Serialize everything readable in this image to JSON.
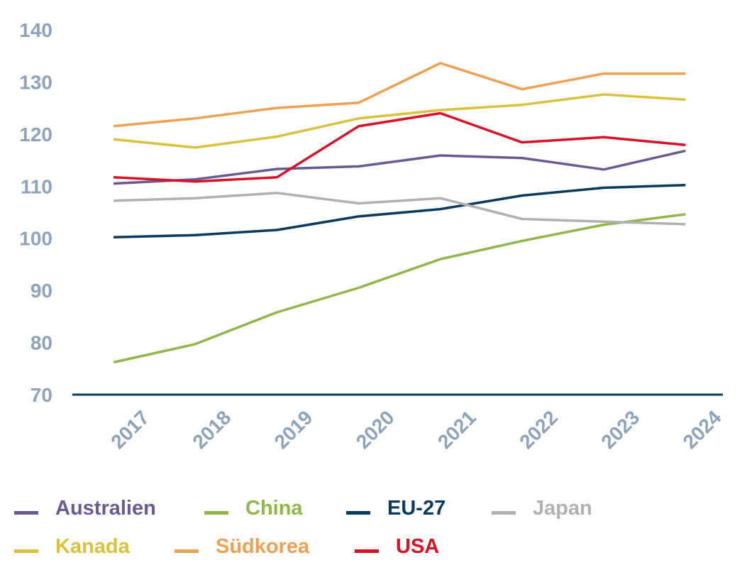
{
  "chart_data": {
    "type": "line",
    "title": "",
    "xlabel": "",
    "ylabel": "",
    "ylim": [
      70,
      140
    ],
    "yticks": [
      "140",
      "130",
      "120",
      "110",
      "100",
      "90",
      "80",
      "70"
    ],
    "categories": [
      "2017",
      "2018",
      "2019",
      "2020",
      "2021",
      "2022",
      "2023",
      "2024"
    ],
    "grid": false,
    "legend_position": "bottom",
    "series": [
      {
        "name": "Australien",
        "color": "#6a5a92",
        "values": [
          110.5,
          111.3,
          113.3,
          113.8,
          115.9,
          115.4,
          113.2,
          116.8
        ]
      },
      {
        "name": "China",
        "color": "#92b54c",
        "values": [
          76.2,
          79.7,
          85.8,
          90.5,
          96.0,
          99.5,
          102.6,
          104.6
        ]
      },
      {
        "name": "EU-27",
        "color": "#0b3a5c",
        "values": [
          100.2,
          100.6,
          101.6,
          104.2,
          105.6,
          108.2,
          109.7,
          110.2
        ]
      },
      {
        "name": "Japan",
        "color": "#b1b1b1",
        "values": [
          107.2,
          107.7,
          108.7,
          106.7,
          107.7,
          103.7,
          103.2,
          102.7
        ]
      },
      {
        "name": "Kanada",
        "color": "#dbc23e",
        "values": [
          119.0,
          117.4,
          119.5,
          123.0,
          124.6,
          125.6,
          127.6,
          126.6
        ]
      },
      {
        "name": "Südkorea",
        "color": "#eda253",
        "values": [
          121.5,
          123.0,
          125.0,
          126.0,
          133.6,
          128.6,
          131.6,
          131.6
        ]
      },
      {
        "name": "USA",
        "color": "#d81126",
        "values": [
          111.7,
          110.9,
          111.7,
          121.5,
          124.0,
          118.4,
          119.4,
          117.9
        ]
      }
    ]
  },
  "colors": {
    "tick_text": "#8fa3bb",
    "axis_line": "#0b3a5c"
  }
}
